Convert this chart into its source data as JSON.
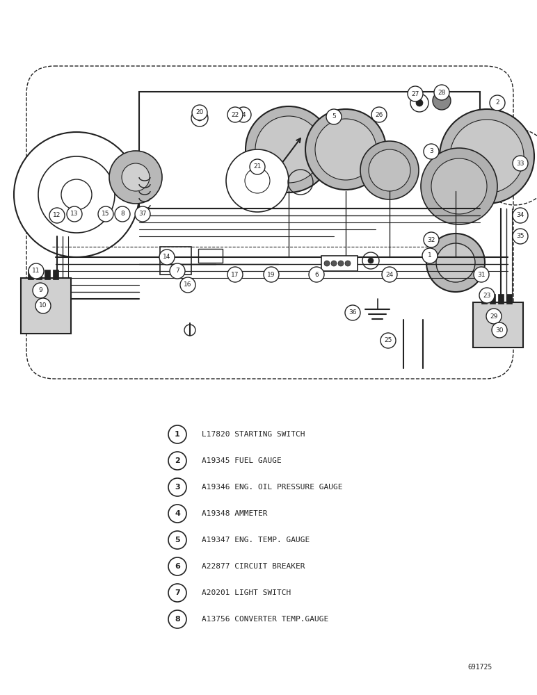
{
  "bg_color": "#ffffff",
  "line_color": "#222222",
  "fig_w": 7.72,
  "fig_h": 10.0,
  "dpi": 100,
  "legend_items": [
    {
      "num": "1",
      "text": "L17820 STARTING SWITCH"
    },
    {
      "num": "2",
      "text": "A19345 FUEL GAUGE"
    },
    {
      "num": "3",
      "text": "A19346 ENG. OIL PRESSURE GAUGE"
    },
    {
      "num": "4",
      "text": "A19348 AMMETER"
    },
    {
      "num": "5",
      "text": "A19347 ENG. TEMP. GAUGE"
    },
    {
      "num": "6",
      "text": "A22877 CIRCUIT BREAKER"
    },
    {
      "num": "7",
      "text": "A20201 LIGHT SWITCH"
    },
    {
      "num": "8",
      "text": "A13756 CONVERTER TEMP.GAUGE"
    }
  ],
  "part_num_label": "691725"
}
